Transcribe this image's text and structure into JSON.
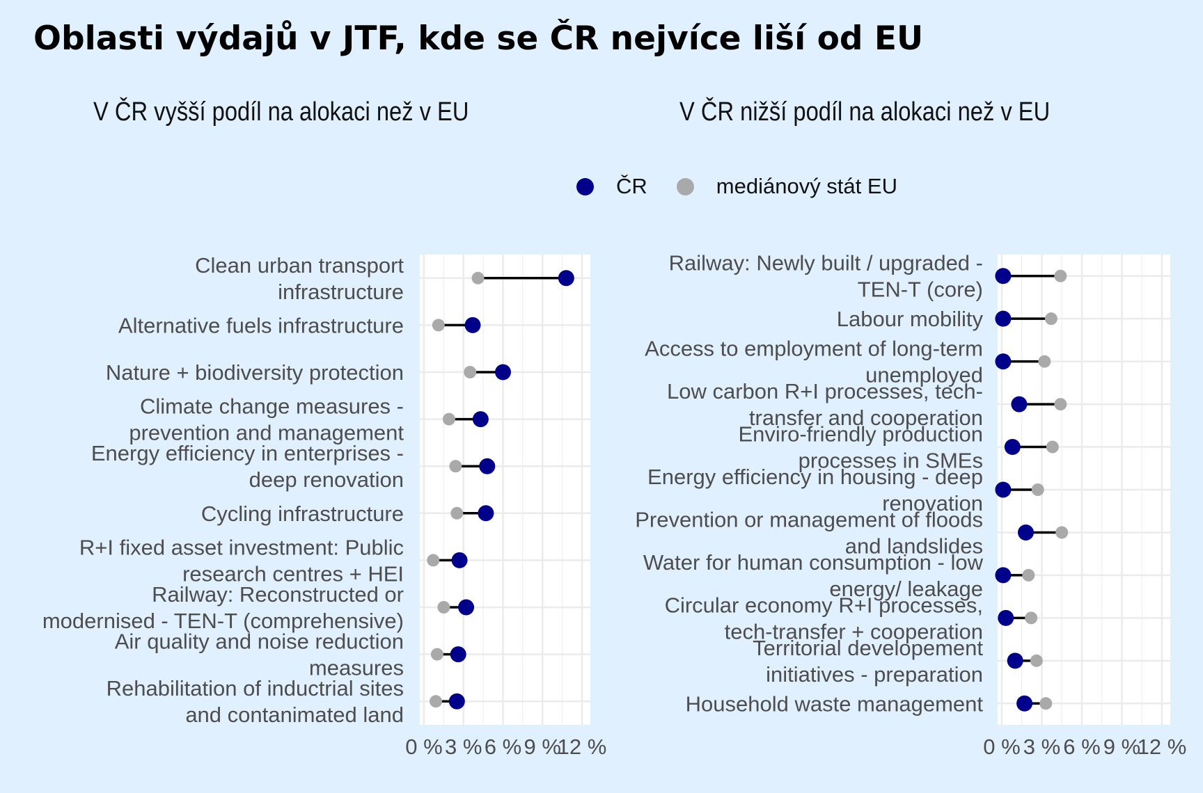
{
  "title": "Oblasti výdajů v JTF, kde se ČR nejvíce liší od EU",
  "legend": {
    "items": [
      {
        "label": "ČR",
        "color": "#00008b"
      },
      {
        "label": "mediánový stát EU",
        "color": "#a9a9a9"
      }
    ]
  },
  "colors": {
    "background": "#e1f0fe",
    "panel": "#ffffff",
    "grid": "#ebebeb",
    "segment": "#000000",
    "cr": "#00008b",
    "eu": "#a9a9a9"
  },
  "chart_data": [
    {
      "type": "dumbbell",
      "title": "V ČR vyšší podíl na alokaci než v EU",
      "xlim": [
        0,
        12
      ],
      "xticks": [
        "0 %",
        "3 %",
        "6 %",
        "9 %",
        "12 %"
      ],
      "xtick_values": [
        0,
        3,
        6,
        9,
        12
      ],
      "series": [
        {
          "name": "ČR"
        },
        {
          "name": "mediánový stát EU"
        }
      ],
      "categories": [
        {
          "label": [
            "Clean urban transport",
            "infrastructure"
          ],
          "cr": 10.8,
          "eu": 4.1
        },
        {
          "label": [
            "Alternative fuels infrastructure"
          ],
          "cr": 3.7,
          "eu": 1.1
        },
        {
          "label": [
            "Nature + biodiversity protection"
          ],
          "cr": 6.0,
          "eu": 3.5
        },
        {
          "label": [
            "Climate change measures -",
            "prevention and management"
          ],
          "cr": 4.3,
          "eu": 1.9
        },
        {
          "label": [
            "Energy efficiency in enterprises -",
            "deep renovation"
          ],
          "cr": 4.8,
          "eu": 2.4
        },
        {
          "label": [
            "Cycling infrastructure"
          ],
          "cr": 4.7,
          "eu": 2.5
        },
        {
          "label": [
            "R+I fixed asset investment: Public",
            "research centres + HEI"
          ],
          "cr": 2.7,
          "eu": 0.7
        },
        {
          "label": [
            "Railway: Reconstructed or",
            "modernised - TEN-T (comprehensive)"
          ],
          "cr": 3.2,
          "eu": 1.5
        },
        {
          "label": [
            "Air quality and noise reduction",
            "measures"
          ],
          "cr": 2.6,
          "eu": 1.0
        },
        {
          "label": [
            "Rehabilitation of inductrial sites",
            "and contanimated land"
          ],
          "cr": 2.5,
          "eu": 0.9
        }
      ]
    },
    {
      "type": "dumbbell",
      "title": "V ČR nižší podíl na alokaci než v EU",
      "xlim": [
        0,
        12
      ],
      "xticks": [
        "0 %",
        "3 %",
        "6 %",
        "9 %",
        "12 %"
      ],
      "xtick_values": [
        0,
        3,
        6,
        9,
        12
      ],
      "series": [
        {
          "name": "ČR"
        },
        {
          "name": "mediánový stát EU"
        }
      ],
      "categories": [
        {
          "label": [
            "Railway: Newly built / upgraded -",
            "TEN-T (core)"
          ],
          "cr": 0.1,
          "eu": 4.4
        },
        {
          "label": [
            "Labour mobility"
          ],
          "cr": 0.1,
          "eu": 3.7
        },
        {
          "label": [
            "Access to employment of long-term",
            "unemployed"
          ],
          "cr": 0.1,
          "eu": 3.2
        },
        {
          "label": [
            "Low carbon R+I processes, tech-",
            "transfer and cooperation"
          ],
          "cr": 1.3,
          "eu": 4.4
        },
        {
          "label": [
            "Enviro-friendly production",
            "processes in SMEs"
          ],
          "cr": 0.8,
          "eu": 3.8
        },
        {
          "label": [
            "Energy efficiency in housing - deep",
            "renovation"
          ],
          "cr": 0.1,
          "eu": 2.7
        },
        {
          "label": [
            "Prevention or management of floods",
            "and landslides"
          ],
          "cr": 1.8,
          "eu": 4.5
        },
        {
          "label": [
            "Water for human consumption - low",
            "energy/ leakage"
          ],
          "cr": 0.1,
          "eu": 2.0
        },
        {
          "label": [
            "Circular economy R+I processes,",
            "tech-transfer + cooperation"
          ],
          "cr": 0.3,
          "eu": 2.2
        },
        {
          "label": [
            "Territorial developement",
            "initiatives - preparation"
          ],
          "cr": 1.0,
          "eu": 2.6
        },
        {
          "label": [
            "Household waste management"
          ],
          "cr": 1.7,
          "eu": 3.3
        }
      ]
    }
  ]
}
